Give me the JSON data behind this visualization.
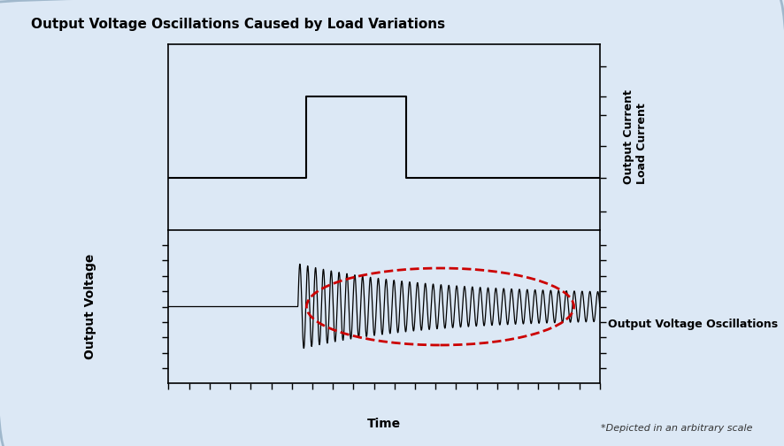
{
  "title": "Output Voltage Oscillations Caused by Load Variations",
  "xlabel": "Time",
  "ylabel_voltage": "Output Voltage",
  "ylabel_current": "Output Current\nLoad Current",
  "annotation": "Output Voltage Oscillations",
  "footnote": "*Depicted in an arbitrary scale",
  "bg_color": "#dce8f5",
  "plot_bg_color": "#dce8f5",
  "line_color": "#000000",
  "ellipse_color": "#cc0000",
  "title_fontsize": 11,
  "label_fontsize": 9,
  "annot_fontsize": 9,
  "fig_width": 8.86,
  "fig_height": 5.04,
  "dpi": 100
}
